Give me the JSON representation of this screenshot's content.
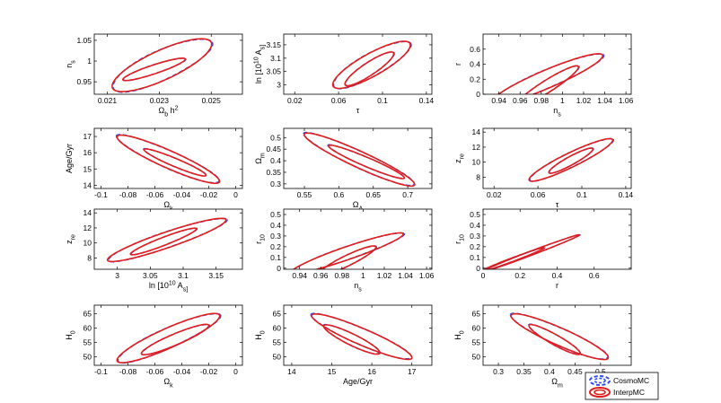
{
  "figure": {
    "rows": 4,
    "cols": 3,
    "line_colors": {
      "cosmomc": "#2d4bf0",
      "interpmc": "#e01e1e"
    },
    "legend": [
      {
        "label": "CosmoMC",
        "style": "dashed",
        "color": "#2d4bf0"
      },
      {
        "label": "InterpMC",
        "style": "solid",
        "color": "#e01e1e"
      }
    ]
  },
  "chart_data": [
    {
      "type": "contour",
      "xlabel": "Ω_b h^2",
      "ylabel": "n_s",
      "xlim": [
        0.0205,
        0.0262
      ],
      "ylim": [
        0.92,
        1.065
      ],
      "xticks": [
        0.021,
        0.023,
        0.025
      ],
      "xtick_labels": [
        "0.021",
        "0.023",
        "0.025"
      ],
      "yticks": [
        0.95,
        1.0,
        1.05
      ],
      "ytick_labels": [
        "0.95",
        "1",
        "1.05"
      ],
      "contours": {
        "outer": {
          "center": [
            0.0231,
            0.99
          ],
          "minor_axis_end": [
            0.0222,
            1.003
          ],
          "major_end": [
            0.025,
            1.045
          ]
        },
        "inner": {
          "center": [
            0.0228,
            0.98
          ],
          "minor_axis_end": [
            0.0225,
            0.985
          ],
          "major_end": [
            0.024,
            1.005
          ]
        }
      }
    },
    {
      "type": "contour",
      "xlabel": "τ",
      "ylabel": "ln [10^10 A_s]",
      "xlim": [
        0.01,
        0.145
      ],
      "ylim": [
        2.965,
        3.19
      ],
      "xticks": [
        0.02,
        0.06,
        0.1,
        0.14
      ],
      "xtick_labels": [
        "0.02",
        "0.06",
        "0.1",
        "0.14"
      ],
      "yticks": [
        3.0,
        3.05,
        3.1,
        3.15
      ],
      "ytick_labels": [
        "3",
        "3.05",
        "3.1",
        "3.15"
      ],
      "contours": {
        "outer": {
          "center": [
            0.09,
            3.075
          ],
          "minor_axis_end": [
            0.082,
            3.105
          ],
          "major_end": [
            0.125,
            3.155
          ]
        },
        "inner": {
          "center": [
            0.088,
            3.06
          ],
          "minor_axis_end": [
            0.083,
            3.075
          ],
          "major_end": [
            0.11,
            3.12
          ]
        }
      }
    },
    {
      "type": "contour",
      "xlabel": "n_s",
      "ylabel": "r",
      "xlim": [
        0.925,
        1.065
      ],
      "ylim": [
        0,
        0.8
      ],
      "xticks": [
        0.94,
        0.96,
        0.98,
        1.0,
        1.02,
        1.04,
        1.06
      ],
      "xtick_labels": [
        "0.94",
        "0.96",
        "0.98",
        "1",
        "1.02",
        "1.04",
        "1.06"
      ],
      "yticks": [
        0,
        0.2,
        0.4,
        0.6
      ],
      "ytick_labels": [
        "0",
        "0.2",
        "0.4",
        "0.6"
      ],
      "contours": {
        "outer": {
          "center": [
            0.985,
            0.2
          ],
          "minor_axis_end": [
            0.975,
            0.27
          ],
          "major_end": [
            1.038,
            0.52
          ]
        },
        "inner": {
          "center": [
            0.985,
            0.1
          ],
          "minor_axis_end": [
            0.98,
            0.15
          ],
          "major_end": [
            1.015,
            0.37
          ]
        }
      }
    },
    {
      "type": "contour",
      "xlabel": "Ω_k",
      "ylabel": "Age/Gyr",
      "xlim": [
        -0.105,
        0.005
      ],
      "ylim": [
        13.8,
        17.5
      ],
      "xticks": [
        -0.1,
        -0.08,
        -0.06,
        -0.04,
        -0.02,
        0
      ],
      "xtick_labels": [
        "-0.1",
        "-0.08",
        "-0.06",
        "-0.04",
        "-0.02",
        "0"
      ],
      "yticks": [
        14,
        15,
        16,
        17
      ],
      "ytick_labels": [
        "14",
        "15",
        "16",
        "17"
      ],
      "contours": {
        "outer": {
          "center": [
            -0.05,
            15.6
          ],
          "minor_axis_end": [
            -0.045,
            16.0
          ],
          "major_end": [
            -0.088,
            17.0
          ]
        },
        "inner": {
          "center": [
            -0.045,
            15.4
          ],
          "minor_axis_end": [
            -0.043,
            15.6
          ],
          "major_end": [
            -0.068,
            16.2
          ]
        }
      }
    },
    {
      "type": "contour",
      "xlabel": "Ω_Λ",
      "ylabel": "Ω_m",
      "xlim": [
        0.52,
        0.735
      ],
      "ylim": [
        0.28,
        0.54
      ],
      "xticks": [
        0.55,
        0.6,
        0.65,
        0.7
      ],
      "xtick_labels": [
        "0.55",
        "0.6",
        "0.65",
        "0.7"
      ],
      "yticks": [
        0.3,
        0.35,
        0.4,
        0.45,
        0.5
      ],
      "ytick_labels": [
        "0.3",
        "0.35",
        "0.4",
        "0.45",
        "0.5"
      ],
      "contours": {
        "outer": {
          "center": [
            0.63,
            0.405
          ],
          "minor_axis_end": [
            0.64,
            0.43
          ],
          "major_end": [
            0.55,
            0.515
          ]
        },
        "inner": {
          "center": [
            0.64,
            0.395
          ],
          "minor_axis_end": [
            0.645,
            0.41
          ],
          "major_end": [
            0.585,
            0.465
          ]
        }
      }
    },
    {
      "type": "contour",
      "xlabel": "τ",
      "ylabel": "z_re",
      "xlim": [
        0.01,
        0.145
      ],
      "ylim": [
        6.5,
        14.5
      ],
      "xticks": [
        0.02,
        0.06,
        0.1,
        0.14
      ],
      "xtick_labels": [
        "0.02",
        "0.06",
        "0.1",
        "0.14"
      ],
      "yticks": [
        8,
        10,
        12,
        14
      ],
      "ytick_labels": [
        "8",
        "10",
        "12",
        "14"
      ],
      "contours": {
        "outer": {
          "center": [
            0.09,
            10.3
          ],
          "minor_axis_end": [
            0.085,
            11.0
          ],
          "major_end": [
            0.128,
            13.0
          ]
        },
        "inner": {
          "center": [
            0.09,
            10.2
          ],
          "minor_axis_end": [
            0.087,
            10.6
          ],
          "major_end": [
            0.11,
            11.8
          ]
        }
      }
    },
    {
      "type": "contour",
      "xlabel": "ln [10^10 A_s]",
      "ylabel": "z_re",
      "xlim": [
        2.965,
        3.19
      ],
      "ylim": [
        6.5,
        14.5
      ],
      "xticks": [
        3.0,
        3.05,
        3.1,
        3.15
      ],
      "xtick_labels": [
        "3",
        "3.05",
        "3.1",
        "3.15"
      ],
      "yticks": [
        8,
        10,
        12,
        14
      ],
      "ytick_labels": [
        "8",
        "10",
        "12",
        "14"
      ],
      "contours": {
        "outer": {
          "center": [
            3.075,
            10.4
          ],
          "minor_axis_end": [
            3.065,
            11.2
          ],
          "major_end": [
            3.165,
            13.1
          ]
        },
        "inner": {
          "center": [
            3.07,
            10.2
          ],
          "minor_axis_end": [
            3.065,
            10.6
          ],
          "major_end": [
            3.12,
            11.9
          ]
        }
      }
    },
    {
      "type": "contour",
      "xlabel": "n_s",
      "ylabel": "r_10",
      "xlim": [
        0.925,
        1.065
      ],
      "ylim": [
        -0.01,
        0.55
      ],
      "xticks": [
        0.94,
        0.96,
        0.98,
        1.0,
        1.02,
        1.04,
        1.06
      ],
      "xtick_labels": [
        "0.94",
        "0.96",
        "0.98",
        "1",
        "1.02",
        "1.04",
        "1.06"
      ],
      "yticks": [
        0,
        0.1,
        0.2,
        0.3,
        0.4,
        0.5
      ],
      "ytick_labels": [
        "0",
        "0.1",
        "0.2",
        "0.3",
        "0.4",
        "0.5"
      ],
      "contours": {
        "outer": {
          "center": [
            0.985,
            0.14
          ],
          "minor_axis_end": [
            0.978,
            0.18
          ],
          "major_end": [
            1.038,
            0.32
          ]
        },
        "inner": {
          "center": [
            0.985,
            0.07
          ],
          "minor_axis_end": [
            0.98,
            0.1
          ],
          "major_end": [
            1.012,
            0.2
          ]
        }
      }
    },
    {
      "type": "contour",
      "xlabel": "r",
      "ylabel": "r_10",
      "xlim": [
        0,
        0.8
      ],
      "ylim": [
        -0.01,
        0.55
      ],
      "xticks": [
        0,
        0.2,
        0.4,
        0.6
      ],
      "xtick_labels": [
        "0",
        "0.2",
        "0.4",
        "0.6"
      ],
      "yticks": [
        0,
        0.1,
        0.2,
        0.3,
        0.4,
        0.5
      ],
      "ytick_labels": [
        "0",
        "0.1",
        "0.2",
        "0.3",
        "0.4",
        "0.5"
      ],
      "contours": {
        "outer": {
          "center": [
            0.26,
            0.14
          ],
          "minor_axis_end": [
            0.252,
            0.155
          ],
          "major_end": [
            0.52,
            0.31
          ]
        },
        "inner": {
          "center": [
            0.16,
            0.08
          ],
          "minor_axis_end": [
            0.155,
            0.09
          ],
          "major_end": [
            0.33,
            0.19
          ]
        }
      }
    },
    {
      "type": "contour",
      "xlabel": "Ω_k",
      "ylabel": "H_0",
      "xlim": [
        -0.105,
        0.005
      ],
      "ylim": [
        47,
        68
      ],
      "xticks": [
        -0.1,
        -0.08,
        -0.06,
        -0.04,
        -0.02,
        0
      ],
      "xtick_labels": [
        "-0.1",
        "-0.08",
        "-0.06",
        "-0.04",
        "-0.02",
        "0"
      ],
      "yticks": [
        50,
        55,
        60,
        65
      ],
      "ytick_labels": [
        "50",
        "55",
        "60",
        "65"
      ],
      "contours": {
        "outer": {
          "center": [
            -0.05,
            56.5
          ],
          "minor_axis_end": [
            -0.056,
            59.0
          ],
          "major_end": [
            -0.012,
            64.5
          ]
        },
        "inner": {
          "center": [
            -0.045,
            56.0
          ],
          "minor_axis_end": [
            -0.048,
            57.5
          ],
          "major_end": [
            -0.02,
            61.0
          ]
        }
      }
    },
    {
      "type": "contour",
      "xlabel": "Age/Gyr",
      "ylabel": "H_0",
      "xlim": [
        13.8,
        17.5
      ],
      "ylim": [
        47,
        68
      ],
      "xticks": [
        14,
        15,
        16,
        17
      ],
      "xtick_labels": [
        "14",
        "15",
        "16",
        "17"
      ],
      "yticks": [
        50,
        55,
        60,
        65
      ],
      "ytick_labels": [
        "50",
        "55",
        "60",
        "65"
      ],
      "contours": {
        "outer": {
          "center": [
            15.75,
            57.0
          ],
          "minor_axis_end": [
            15.9,
            59.2
          ],
          "major_end": [
            14.5,
            64.5
          ]
        },
        "inner": {
          "center": [
            15.5,
            56.0
          ],
          "minor_axis_end": [
            15.6,
            57.5
          ],
          "major_end": [
            14.8,
            60.8
          ]
        }
      }
    },
    {
      "type": "contour",
      "xlabel": "Ω_m",
      "ylabel": "H_0",
      "xlim": [
        0.27,
        0.56
      ],
      "ylim": [
        47,
        68
      ],
      "xticks": [
        0.3,
        0.35,
        0.4,
        0.45,
        0.5
      ],
      "xtick_labels": [
        "0.3",
        "0.35",
        "0.4",
        "0.45",
        "0.5"
      ],
      "yticks": [
        50,
        55,
        60,
        65
      ],
      "ytick_labels": [
        "50",
        "55",
        "60",
        "65"
      ],
      "contours": {
        "outer": {
          "center": [
            0.42,
            57.0
          ],
          "minor_axis_end": [
            0.43,
            59.5
          ],
          "major_end": [
            0.325,
            64.5
          ]
        },
        "inner": {
          "center": [
            0.41,
            56.0
          ],
          "minor_axis_end": [
            0.415,
            57.5
          ],
          "major_end": [
            0.36,
            61.0
          ]
        }
      }
    }
  ]
}
